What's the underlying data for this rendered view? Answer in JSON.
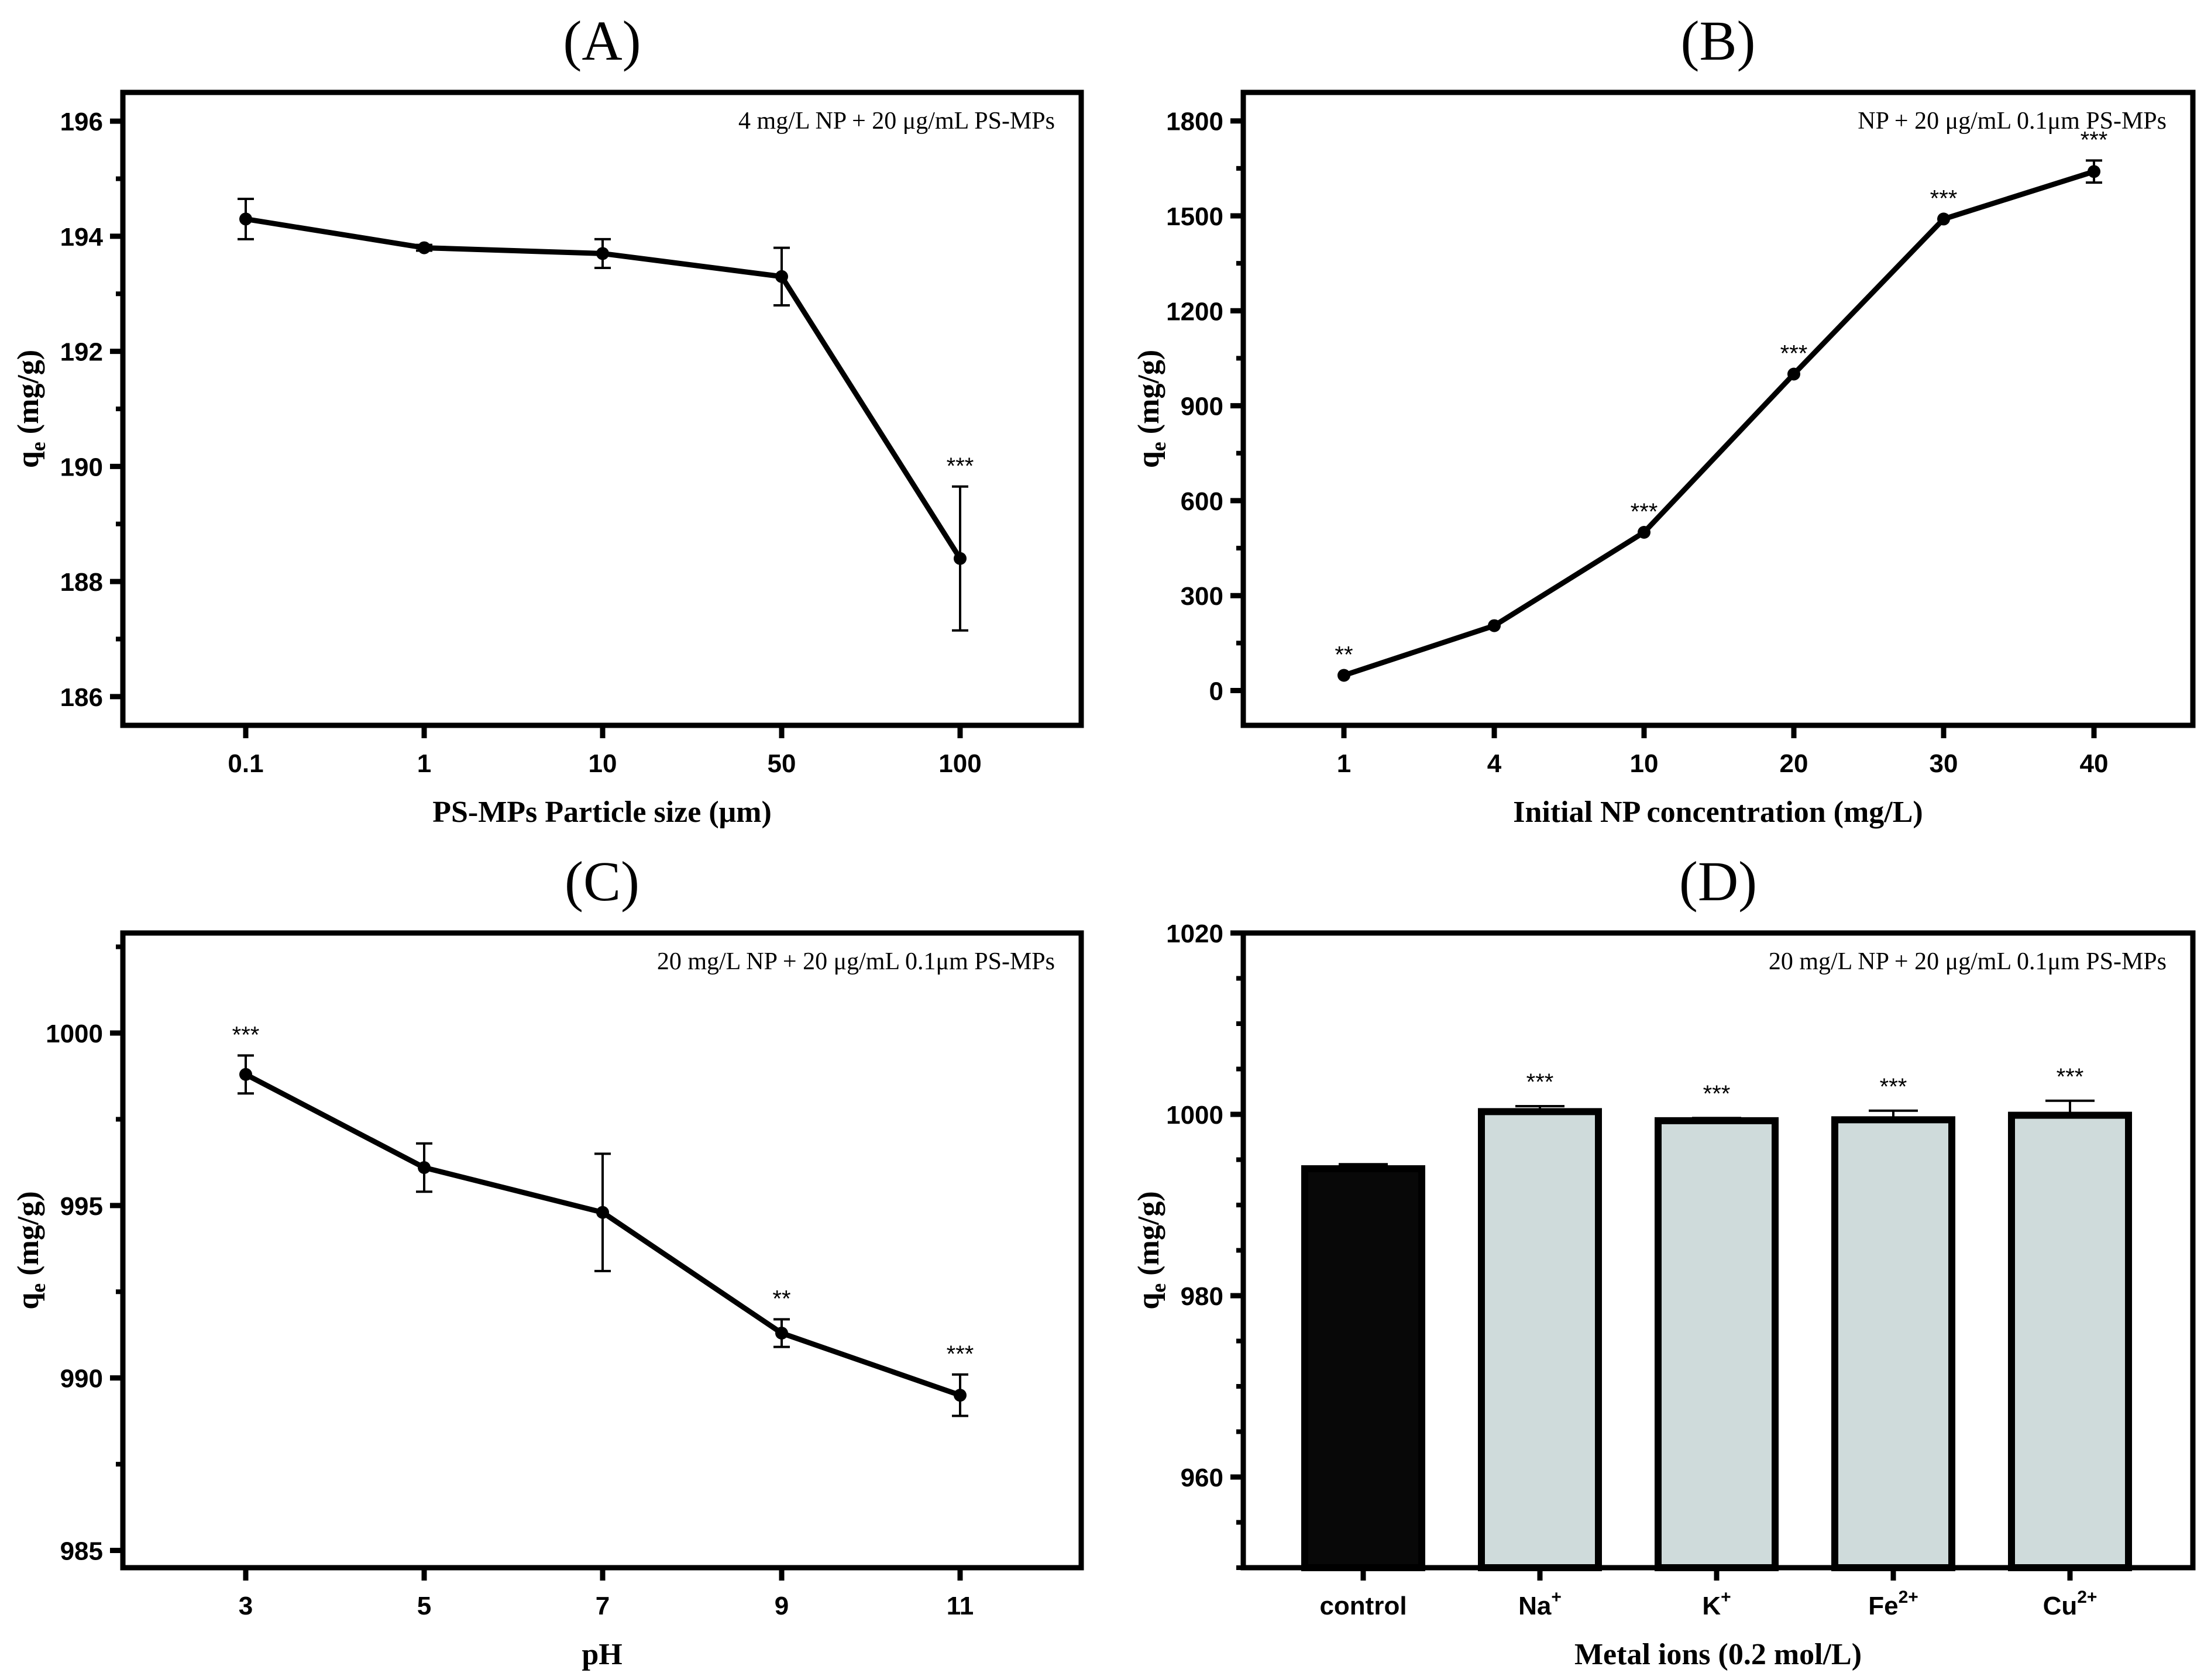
{
  "chart_data": [
    {
      "panel": "(A)",
      "type": "line",
      "annotation": "4 mg/L NP + 20 μg/mL PS-MPs",
      "xlabel": "PS-MPs Particle size (μm)",
      "ylabel": {
        "main": "q",
        "sub": "e",
        "rest": " (mg/g)"
      },
      "categories": [
        "0.1",
        "1",
        "10",
        "50",
        "100"
      ],
      "values": [
        194.3,
        193.8,
        193.7,
        193.3,
        188.4
      ],
      "errors": [
        0.35,
        0.05,
        0.25,
        0.5,
        1.25
      ],
      "significance": [
        "",
        "",
        "",
        "",
        "***"
      ],
      "ylim": [
        185.5,
        196.5
      ],
      "yticks": [
        186,
        188,
        190,
        192,
        194,
        196
      ],
      "minor_step": 1
    },
    {
      "panel": "(B)",
      "type": "line",
      "annotation": "NP + 20 μg/mL 0.1μm PS-MPs",
      "xlabel": "Initial NP concentration (mg/L)",
      "ylabel": {
        "main": "q",
        "sub": "e",
        "rest": " (mg/g)"
      },
      "categories": [
        "1",
        "4",
        "10",
        "20",
        "30",
        "40"
      ],
      "values": [
        48,
        205,
        500,
        1000,
        1490,
        1640
      ],
      "errors": [
        0,
        0,
        0,
        0,
        0,
        35
      ],
      "significance": [
        "**",
        "",
        "***",
        "***",
        "***",
        "***"
      ],
      "ylim": [
        -110,
        1890
      ],
      "yticks": [
        0,
        300,
        600,
        900,
        1200,
        1500,
        1800
      ],
      "minor_step": 150
    },
    {
      "panel": "(C)",
      "type": "line",
      "annotation": "20 mg/L NP + 20 μg/mL 0.1μm PS-MPs",
      "xlabel": "pH",
      "ylabel": {
        "main": "q",
        "sub": "e",
        "rest": " (mg/g)"
      },
      "categories": [
        "3",
        "5",
        "7",
        "9",
        "11"
      ],
      "values": [
        998.8,
        996.1,
        994.8,
        991.3,
        989.5
      ],
      "errors": [
        0.55,
        0.7,
        1.7,
        0.4,
        0.6
      ],
      "significance": [
        "***",
        "",
        "",
        "**",
        "***"
      ],
      "ylim": [
        984.5,
        1002.9
      ],
      "yticks": [
        985,
        990,
        995,
        1000
      ],
      "minor_step": 2.5
    },
    {
      "panel": "(D)",
      "type": "bar",
      "annotation": "20 mg/L NP + 20 μg/mL 0.1μm PS-MPs",
      "xlabel": "Metal ions (0.2 mol/L)",
      "ylabel": {
        "main": "q",
        "sub": "e",
        "rest": " (mg/g)"
      },
      "categories": [
        {
          "base": "control",
          "sup": ""
        },
        {
          "base": "Na",
          "sup": "+"
        },
        {
          "base": "K",
          "sup": "+"
        },
        {
          "base": "Fe",
          "sup": "2+"
        },
        {
          "base": "Cu",
          "sup": "2+"
        }
      ],
      "values": [
        994.0,
        1000.3,
        999.3,
        999.4,
        999.9
      ],
      "errors": [
        0.5,
        0.6,
        0.3,
        1.0,
        1.6
      ],
      "significance": [
        "",
        "***",
        "***",
        "***",
        "***"
      ],
      "colors": [
        "#080808",
        "#cfdbdb",
        "#cfdbdb",
        "#cfdbdb",
        "#cfdbdb"
      ],
      "ylim": [
        950,
        1020
      ],
      "yticks": [
        960,
        980,
        1000,
        1020
      ],
      "minor_step": 5
    }
  ]
}
